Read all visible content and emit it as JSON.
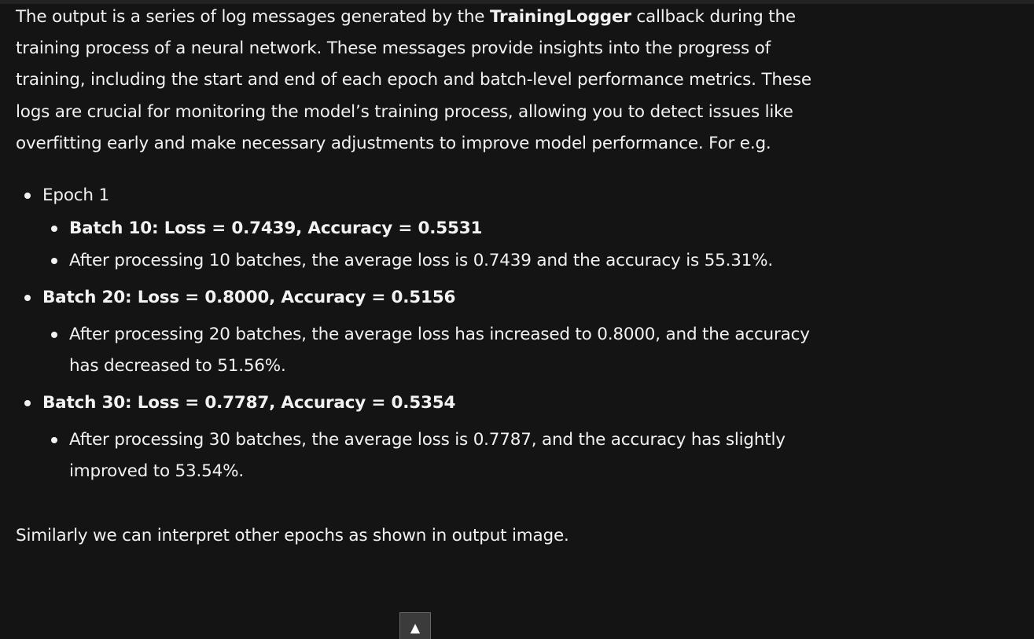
{
  "intro": {
    "text_before": "The output is a series of log messages generated by the ",
    "bold": "TrainingLogger",
    "text_after": " callback during the training process of a neural network. These messages provide insights into the progress of training, including the start and end of each epoch and batch-level performance metrics. These logs are crucial for monitoring the model’s training process, allowing you to detect issues like overfitting early and make necessary adjustments to improve model performance. For e.g."
  },
  "items": [
    {
      "label": "Epoch 1",
      "children": [
        {
          "text": "Batch 10: Loss = 0.7439, Accuracy = 0.5531",
          "bold": true
        },
        {
          "text": "After processing 10 batches, the average loss is 0.7439 and the accuracy is 55.31%.",
          "bold": false
        }
      ]
    },
    {
      "label": "Batch 20: Loss = 0.8000, Accuracy = 0.5156",
      "children": [
        {
          "text": "After processing 20 batches, the average loss has increased to 0.8000, and the accuracy has decreased to 51.56%.",
          "bold": false
        }
      ]
    },
    {
      "label": "Batch 30: Loss = 0.7787, Accuracy = 0.5354",
      "children": [
        {
          "text": "After processing 30 batches, the average loss is 0.7787, and the accuracy has slightly improved to 53.54%.",
          "bold": false
        }
      ]
    }
  ],
  "outro": "Similarly we can interpret other epochs as shown in output image.",
  "scroll_top": {
    "icon": "arrow-up-icon",
    "glyph": "▲"
  }
}
